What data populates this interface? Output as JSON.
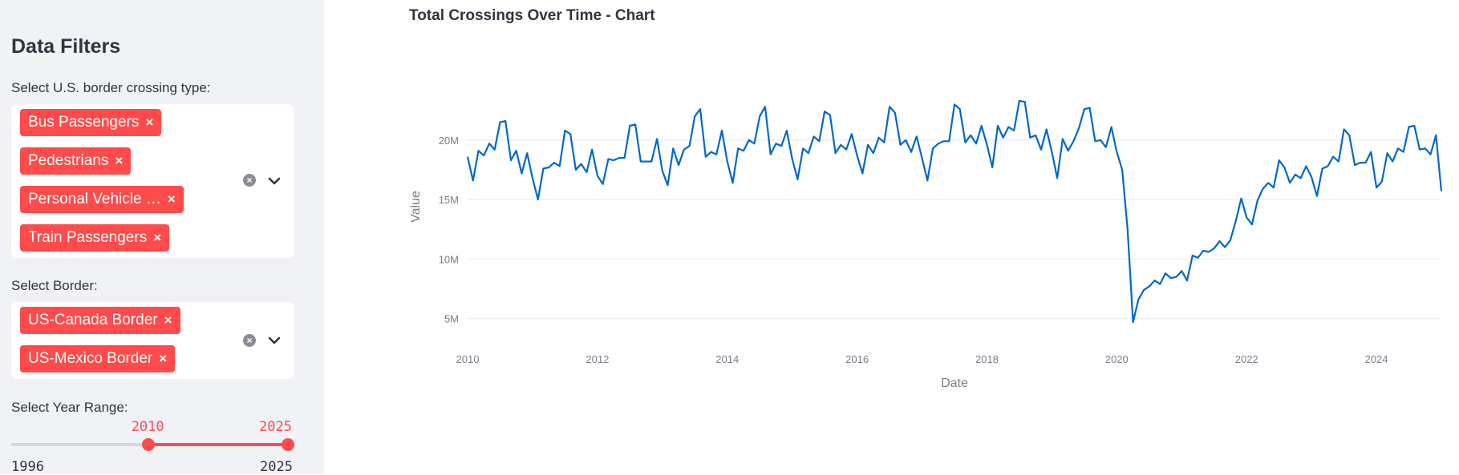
{
  "sidebar": {
    "title": "Data Filters",
    "crossing_type": {
      "label": "Select U.S. border crossing type:",
      "tags": [
        "Bus Passengers",
        "Pedestrians",
        "Personal Vehicle …",
        "Train Passengers"
      ]
    },
    "border": {
      "label": "Select Border:",
      "tags": [
        "US-Canada Border",
        "US-Mexico Border"
      ]
    },
    "year_range": {
      "label": "Select Year Range:",
      "min": 1996,
      "max": 2025,
      "selected_low": 2010,
      "selected_high": 2025,
      "min_label": "1996",
      "max_label": "2025",
      "low_label": "2010",
      "high_label": "2025"
    },
    "remove_glyph": "×",
    "clear_glyph": "×"
  },
  "chart": {
    "title": "Total Crossings Over Time - Chart"
  },
  "colors": {
    "accent": "#ff4b4b",
    "line": "#0068c9",
    "sidebar_bg": "#f0f2f6"
  },
  "chart_data": {
    "type": "line",
    "title": "Total Crossings Over Time - Chart",
    "xlabel": "Date",
    "ylabel": "Value",
    "x_ticks": [
      "2010",
      "2012",
      "2014",
      "2016",
      "2018",
      "2020",
      "2022",
      "2024"
    ],
    "y_ticks": [
      "5M",
      "10M",
      "15M",
      "20M"
    ],
    "y_tick_values": [
      5000000,
      10000000,
      15000000,
      20000000
    ],
    "xlim": [
      "2010-01",
      "2025-01"
    ],
    "ylim": [
      3500000,
      24500000
    ],
    "grid": true,
    "series": [
      {
        "x": [
          "2010-01",
          "2010-02",
          "2010-03",
          "2010-04",
          "2010-05",
          "2010-06",
          "2010-07",
          "2010-08",
          "2010-09",
          "2010-10",
          "2010-11",
          "2010-12",
          "2011-01",
          "2011-02",
          "2011-03",
          "2011-04",
          "2011-05",
          "2011-06",
          "2011-07",
          "2011-08",
          "2011-09",
          "2011-10",
          "2011-11",
          "2011-12",
          "2012-01",
          "2012-02",
          "2012-03",
          "2012-04",
          "2012-05",
          "2012-06",
          "2012-07",
          "2012-08",
          "2012-09",
          "2012-10",
          "2012-11",
          "2012-12",
          "2013-01",
          "2013-02",
          "2013-03",
          "2013-04",
          "2013-05",
          "2013-06",
          "2013-07",
          "2013-08",
          "2013-09",
          "2013-10",
          "2013-11",
          "2013-12",
          "2014-01",
          "2014-02",
          "2014-03",
          "2014-04",
          "2014-05",
          "2014-06",
          "2014-07",
          "2014-08",
          "2014-09",
          "2014-10",
          "2014-11",
          "2014-12",
          "2015-01",
          "2015-02",
          "2015-03",
          "2015-04",
          "2015-05",
          "2015-06",
          "2015-07",
          "2015-08",
          "2015-09",
          "2015-10",
          "2015-11",
          "2015-12",
          "2016-01",
          "2016-02",
          "2016-03",
          "2016-04",
          "2016-05",
          "2016-06",
          "2016-07",
          "2016-08",
          "2016-09",
          "2016-10",
          "2016-11",
          "2016-12",
          "2017-01",
          "2017-02",
          "2017-03",
          "2017-04",
          "2017-05",
          "2017-06",
          "2017-07",
          "2017-08",
          "2017-09",
          "2017-10",
          "2017-11",
          "2017-12",
          "2018-01",
          "2018-02",
          "2018-03",
          "2018-04",
          "2018-05",
          "2018-06",
          "2018-07",
          "2018-08",
          "2018-09",
          "2018-10",
          "2018-11",
          "2018-12",
          "2019-01",
          "2019-02",
          "2019-03",
          "2019-04",
          "2019-05",
          "2019-06",
          "2019-07",
          "2019-08",
          "2019-09",
          "2019-10",
          "2019-11",
          "2019-12",
          "2020-01",
          "2020-02",
          "2020-03",
          "2020-04",
          "2020-05",
          "2020-06",
          "2020-07",
          "2020-08",
          "2020-09",
          "2020-10",
          "2020-11",
          "2020-12",
          "2021-01",
          "2021-02",
          "2021-03",
          "2021-04",
          "2021-05",
          "2021-06",
          "2021-07",
          "2021-08",
          "2021-09",
          "2021-10",
          "2021-11",
          "2021-12",
          "2022-01",
          "2022-02",
          "2022-03",
          "2022-04",
          "2022-05",
          "2022-06",
          "2022-07",
          "2022-08",
          "2022-09",
          "2022-10",
          "2022-11",
          "2022-12",
          "2023-01",
          "2023-02",
          "2023-03",
          "2023-04",
          "2023-05",
          "2023-06",
          "2023-07",
          "2023-08",
          "2023-09",
          "2023-10",
          "2023-11",
          "2023-12",
          "2024-01",
          "2024-02",
          "2024-03",
          "2024-04",
          "2024-05",
          "2024-06",
          "2024-07",
          "2024-08",
          "2024-09",
          "2024-10",
          "2024-11",
          "2024-12",
          "2025-01"
        ],
        "values": [
          18.6,
          16.6,
          19.1,
          18.7,
          19.7,
          19.2,
          21.5,
          21.6,
          18.3,
          19.1,
          17.2,
          18.9,
          16.8,
          15.0,
          17.6,
          17.7,
          18.1,
          17.8,
          20.8,
          20.5,
          17.5,
          18.0,
          17.3,
          19.2,
          17.0,
          16.3,
          18.4,
          18.3,
          18.5,
          18.5,
          21.2,
          21.3,
          18.2,
          18.2,
          18.2,
          20.1,
          17.4,
          16.2,
          19.3,
          17.9,
          19.2,
          19.5,
          22.0,
          22.6,
          18.6,
          19.0,
          18.8,
          20.8,
          18.2,
          16.4,
          19.3,
          19.1,
          20.0,
          19.7,
          22.0,
          22.8,
          18.8,
          19.7,
          19.5,
          20.8,
          18.4,
          16.7,
          19.3,
          18.9,
          20.3,
          19.9,
          22.4,
          22.1,
          18.9,
          19.6,
          19.2,
          20.5,
          18.7,
          17.2,
          19.6,
          18.9,
          20.2,
          19.8,
          22.8,
          22.3,
          19.6,
          20.0,
          19.0,
          20.3,
          18.5,
          16.6,
          19.3,
          19.7,
          19.9,
          19.9,
          23.0,
          22.6,
          19.8,
          20.4,
          19.7,
          21.2,
          19.6,
          17.7,
          21.2,
          20.2,
          21.1,
          20.8,
          23.3,
          23.2,
          20.2,
          20.4,
          19.2,
          20.9,
          19.0,
          16.8,
          20.1,
          19.1,
          19.9,
          21.0,
          22.6,
          22.7,
          19.9,
          20.0,
          19.4,
          21.1,
          19.0,
          17.5,
          12.5,
          4.7,
          6.6,
          7.4,
          7.7,
          8.2,
          7.9,
          8.8,
          8.4,
          8.5,
          9.0,
          8.2,
          10.3,
          10.1,
          10.7,
          10.6,
          10.9,
          11.5,
          11.0,
          11.6,
          13.2,
          15.1,
          13.5,
          12.9,
          14.9,
          15.9,
          16.4,
          16.0,
          18.3,
          17.7,
          16.4,
          17.1,
          16.8,
          17.8,
          16.9,
          15.3,
          17.6,
          17.8,
          18.6,
          18.2,
          20.9,
          20.4,
          17.9,
          18.1,
          18.1,
          19.0,
          16.0,
          16.5,
          18.9,
          18.2,
          19.3,
          19.0,
          21.1,
          21.2,
          19.2,
          19.3,
          18.8,
          20.4,
          15.7
        ],
        "unit": "millions"
      }
    ]
  }
}
